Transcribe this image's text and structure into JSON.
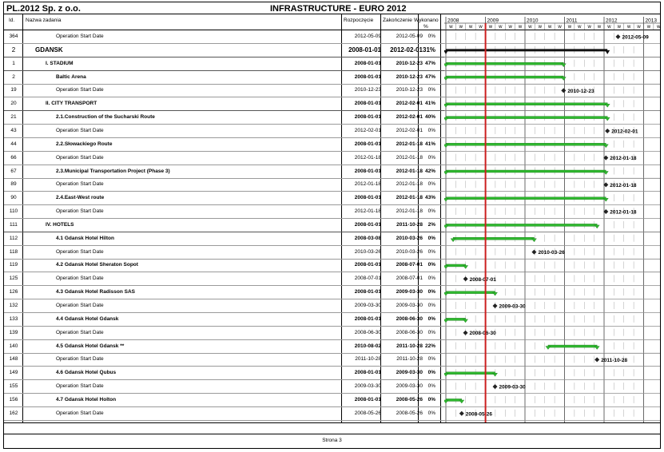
{
  "document": {
    "company": "PL.2012 Sp. z o.o.",
    "title": "INFRASTRUCTURE - EURO 2012",
    "footer": "Strona 3"
  },
  "columns": {
    "id": "Id.",
    "name": "Nazwa zadania",
    "start": "Rozpoczęcie",
    "end": "Zakończenie",
    "pct_top": "Wykonano",
    "pct_bottom": "%"
  },
  "timeline": {
    "years": [
      "2008",
      "2009",
      "2010",
      "2011",
      "2012",
      "2013"
    ],
    "week_label": "w",
    "today": "2009-01-01"
  },
  "colors": {
    "bar": "#2fb82f",
    "summary": "#111111",
    "today": "#cc1f1f"
  },
  "rows": [
    {
      "id": "364",
      "name": "Operation Start Date",
      "start": "2012-05-09",
      "end": "2012-05-09",
      "pct": "0%",
      "level": 3,
      "kind": "milestone",
      "ms_label": "2012-05-09"
    },
    {
      "id": "2",
      "name": "GDANSK",
      "start": "2008-01-01",
      "end": "2012-02-01",
      "pct": "31%",
      "level": 1,
      "kind": "summary"
    },
    {
      "id": "1",
      "name": "I. STADIUM",
      "start": "2008-01-01",
      "end": "2010-12-23",
      "pct": "47%",
      "level": 2,
      "kind": "group"
    },
    {
      "id": "2",
      "name": "Baltic Arena",
      "start": "2008-01-01",
      "end": "2010-12-23",
      "pct": "47%",
      "level": 3,
      "kind": "task"
    },
    {
      "id": "19",
      "name": "Operation Start Date",
      "start": "2010-12-23",
      "end": "2010-12-23",
      "pct": "0%",
      "level": 3,
      "kind": "milestone",
      "ms_label": "2010-12-23"
    },
    {
      "id": "20",
      "name": "II. CITY TRANSPORT",
      "start": "2008-01-01",
      "end": "2012-02-01",
      "pct": "41%",
      "level": 2,
      "kind": "group"
    },
    {
      "id": "21",
      "name": "2.1.Construction of the Sucharski Route",
      "start": "2008-01-01",
      "end": "2012-02-01",
      "pct": "40%",
      "level": 3,
      "kind": "task"
    },
    {
      "id": "43",
      "name": "Operation Start Date",
      "start": "2012-02-01",
      "end": "2012-02-01",
      "pct": "0%",
      "level": 3,
      "kind": "milestone",
      "ms_label": "2012-02-01"
    },
    {
      "id": "44",
      "name": "2.2.Słowackiego Route",
      "start": "2008-01-01",
      "end": "2012-01-18",
      "pct": "41%",
      "level": 3,
      "kind": "task"
    },
    {
      "id": "66",
      "name": "Operation Start Date",
      "start": "2012-01-18",
      "end": "2012-01-18",
      "pct": "0%",
      "level": 3,
      "kind": "milestone",
      "ms_label": "2012-01-18"
    },
    {
      "id": "67",
      "name": "2.3.Municipal Transportation Project (Phase 3)",
      "start": "2008-01-01",
      "end": "2012-01-18",
      "pct": "42%",
      "level": 3,
      "kind": "task"
    },
    {
      "id": "89",
      "name": "Operation Start Date",
      "start": "2012-01-18",
      "end": "2012-01-18",
      "pct": "0%",
      "level": 3,
      "kind": "milestone",
      "ms_label": "2012-01-18"
    },
    {
      "id": "90",
      "name": "2.4.East-West route",
      "start": "2008-01-01",
      "end": "2012-01-18",
      "pct": "43%",
      "level": 3,
      "kind": "task"
    },
    {
      "id": "110",
      "name": "Operation Start Date",
      "start": "2012-01-18",
      "end": "2012-01-18",
      "pct": "0%",
      "level": 3,
      "kind": "milestone",
      "ms_label": "2012-01-18"
    },
    {
      "id": "111",
      "name": "IV. HOTELS",
      "start": "2008-01-01",
      "end": "2011-10-28",
      "pct": "2%",
      "level": 2,
      "kind": "group"
    },
    {
      "id": "112",
      "name": "4.1 Gdansk Hotel Hilton",
      "start": "2008-03-08",
      "end": "2010-03-26",
      "pct": "0%",
      "level": 3,
      "kind": "task"
    },
    {
      "id": "118",
      "name": "Operation Start Date",
      "start": "2010-03-26",
      "end": "2010-03-26",
      "pct": "0%",
      "level": 3,
      "kind": "milestone",
      "ms_label": "2010-03-26"
    },
    {
      "id": "119",
      "name": "4.2 Gdansk Hotel Sheraton Sopot",
      "start": "2008-01-01",
      "end": "2008-07-01",
      "pct": "0%",
      "level": 3,
      "kind": "task"
    },
    {
      "id": "125",
      "name": "Operation Start Date",
      "start": "2008-07-01",
      "end": "2008-07-01",
      "pct": "0%",
      "level": 3,
      "kind": "milestone",
      "ms_label": "2008-07-01"
    },
    {
      "id": "126",
      "name": "4.3 Gdansk Hotel Radisson SAS",
      "start": "2008-01-01",
      "end": "2009-03-30",
      "pct": "0%",
      "level": 3,
      "kind": "task"
    },
    {
      "id": "132",
      "name": "Operation Start Date",
      "start": "2009-03-30",
      "end": "2009-03-30",
      "pct": "0%",
      "level": 3,
      "kind": "milestone",
      "ms_label": "2009-03-30"
    },
    {
      "id": "133",
      "name": "4.4 Gdansk Hotel Gdansk",
      "start": "2008-01-01",
      "end": "2008-06-30",
      "pct": "0%",
      "level": 3,
      "kind": "task"
    },
    {
      "id": "139",
      "name": "Operation Start Date",
      "start": "2008-06-30",
      "end": "2008-06-30",
      "pct": "0%",
      "level": 3,
      "kind": "milestone",
      "ms_label": "2008-06-30"
    },
    {
      "id": "140",
      "name": "4.5 Gdansk Hotel Gdansk **",
      "start": "2010-08-02",
      "end": "2011-10-28",
      "pct": "22%",
      "level": 3,
      "kind": "task"
    },
    {
      "id": "148",
      "name": "Operation Start Date",
      "start": "2011-10-28",
      "end": "2011-10-28",
      "pct": "0%",
      "level": 3,
      "kind": "milestone",
      "ms_label": "2011-10-28"
    },
    {
      "id": "149",
      "name": "4.6 Gdansk Hotel Qubus",
      "start": "2008-01-01",
      "end": "2009-03-30",
      "pct": "0%",
      "level": 3,
      "kind": "task"
    },
    {
      "id": "155",
      "name": "Operation Start Date",
      "start": "2009-03-30",
      "end": "2009-03-30",
      "pct": "0%",
      "level": 3,
      "kind": "milestone",
      "ms_label": "2009-03-30"
    },
    {
      "id": "156",
      "name": "4.7 Gdansk Hotel Holton",
      "start": "2008-01-01",
      "end": "2008-05-26",
      "pct": "0%",
      "level": 3,
      "kind": "task"
    },
    {
      "id": "162",
      "name": "Operation Start Date",
      "start": "2008-05-26",
      "end": "2008-05-26",
      "pct": "0%",
      "level": 3,
      "kind": "milestone",
      "ms_label": "2008-05-26"
    }
  ]
}
